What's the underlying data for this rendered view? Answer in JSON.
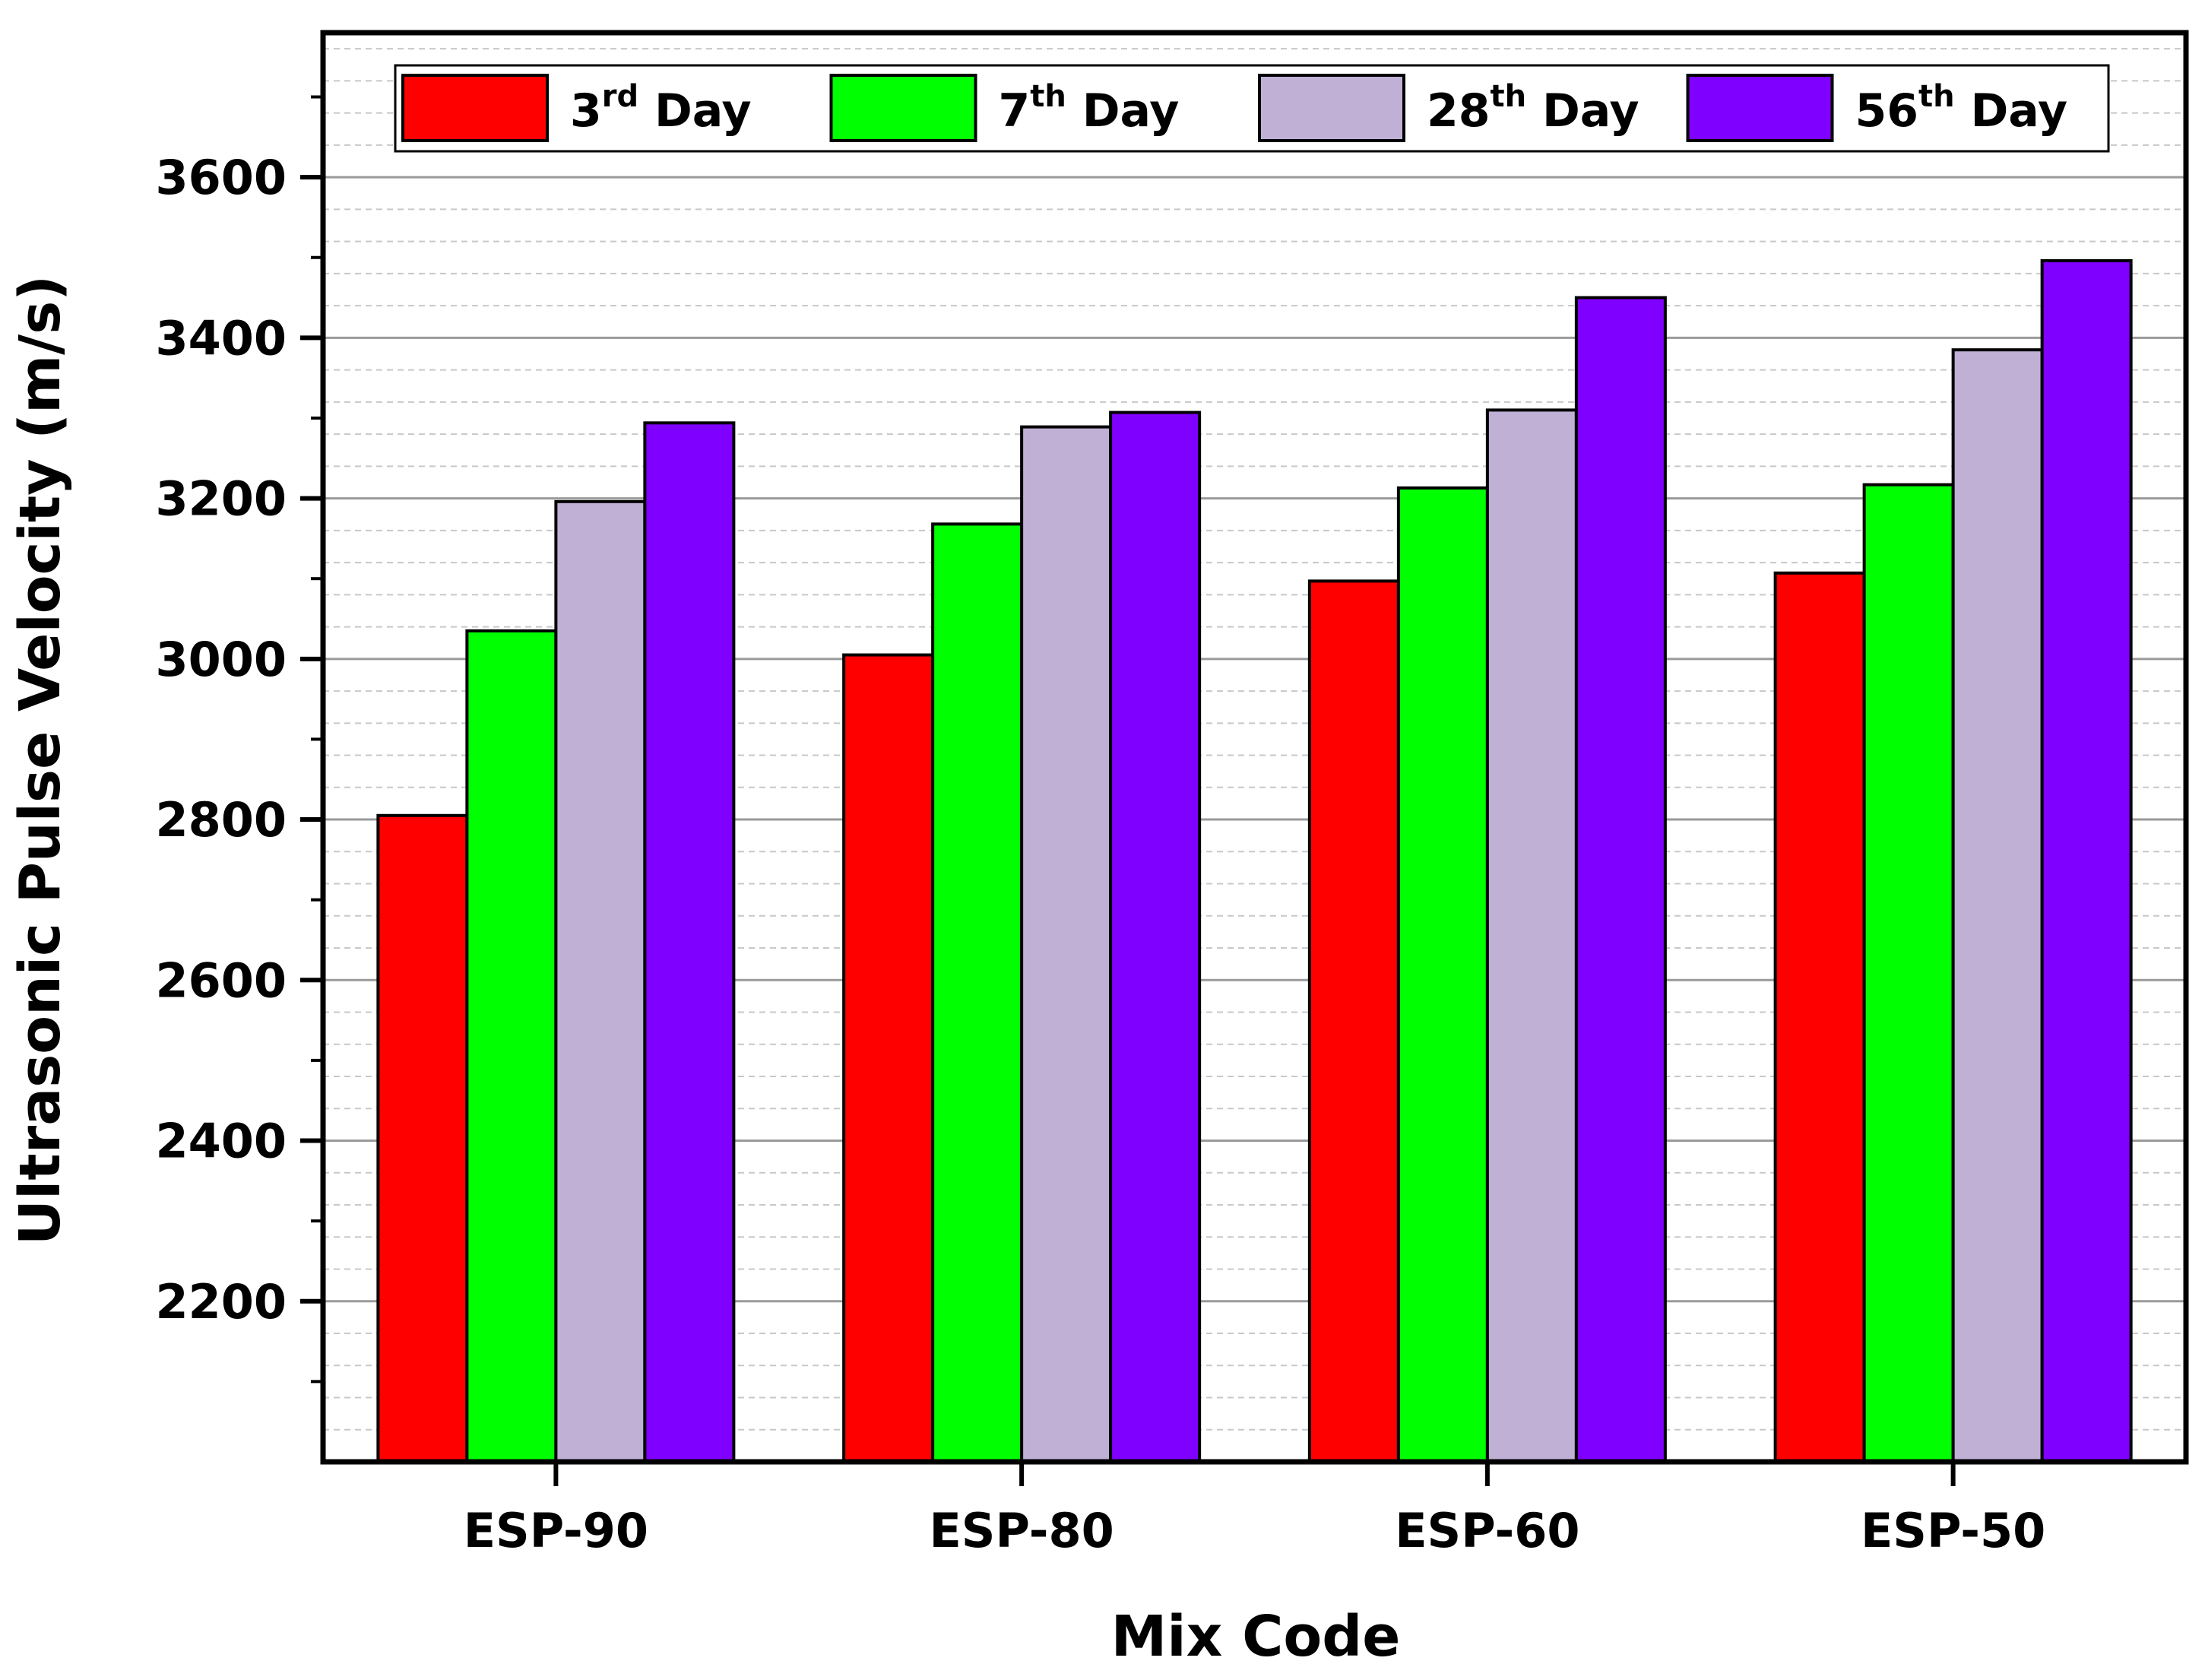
{
  "chart_data": {
    "type": "bar",
    "title": "",
    "xlabel": "Mix Code",
    "ylabel": "Ultrasonic Pulse Velocity (m/s)",
    "categories": [
      "ESP-90",
      "ESP-80",
      "ESP-60",
      "ESP-50"
    ],
    "ylim": [
      2000,
      3780
    ],
    "yticks": [
      2200,
      2400,
      2600,
      2800,
      3000,
      3200,
      3400,
      3600
    ],
    "ytick_labels": [
      "2200",
      "2400",
      "2600",
      "2800",
      "3000",
      "3200",
      "3400",
      "3600"
    ],
    "grid": true,
    "legend_position": "top",
    "series": [
      {
        "name": "3rd Day",
        "label_num": "3",
        "label_sup": "rd",
        "label_word": "Day",
        "color": "#ff0000",
        "values": [
          2805,
          3005,
          3097,
          3107
        ]
      },
      {
        "name": "7th Day",
        "label_num": "7",
        "label_sup": "th",
        "label_word": "Day",
        "color": "#00ff00",
        "values": [
          3035,
          3168,
          3213,
          3217
        ]
      },
      {
        "name": "28th Day",
        "label_num": "28",
        "label_sup": "th",
        "label_word": "Day",
        "color": "#c0b0d6",
        "values": [
          3196,
          3289,
          3310,
          3385
        ]
      },
      {
        "name": "56th Day",
        "label_num": "56",
        "label_sup": "th",
        "label_word": "Day",
        "color": "#8000ff",
        "values": [
          3294,
          3307,
          3450,
          3496
        ]
      }
    ]
  }
}
